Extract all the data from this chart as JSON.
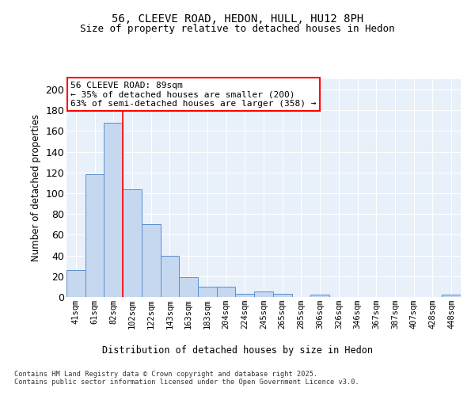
{
  "title_line1": "56, CLEEVE ROAD, HEDON, HULL, HU12 8PH",
  "title_line2": "Size of property relative to detached houses in Hedon",
  "xlabel": "Distribution of detached houses by size in Hedon",
  "ylabel": "Number of detached properties",
  "categories": [
    "41sqm",
    "61sqm",
    "82sqm",
    "102sqm",
    "122sqm",
    "143sqm",
    "163sqm",
    "183sqm",
    "204sqm",
    "224sqm",
    "245sqm",
    "265sqm",
    "285sqm",
    "306sqm",
    "326sqm",
    "346sqm",
    "367sqm",
    "387sqm",
    "407sqm",
    "428sqm",
    "448sqm"
  ],
  "bar_heights": [
    26,
    118,
    168,
    104,
    70,
    40,
    19,
    10,
    10,
    3,
    5,
    3,
    0,
    2,
    0,
    0,
    0,
    0,
    0,
    0,
    2
  ],
  "bar_color": "#c5d8f0",
  "bar_edge_color": "#5b8fc9",
  "red_line_x": 2.5,
  "annotation_text": "56 CLEEVE ROAD: 89sqm\n← 35% of detached houses are smaller (200)\n63% of semi-detached houses are larger (358) →",
  "annotation_box_color": "white",
  "annotation_box_edge": "red",
  "ylim": [
    0,
    210
  ],
  "yticks": [
    0,
    20,
    40,
    60,
    80,
    100,
    120,
    140,
    160,
    180,
    200
  ],
  "background_color": "#e8f0fa",
  "grid_color": "white",
  "footer": "Contains HM Land Registry data © Crown copyright and database right 2025.\nContains public sector information licensed under the Open Government Licence v3.0.",
  "title_fontsize": 10,
  "subtitle_fontsize": 9,
  "annot_fontsize": 8
}
